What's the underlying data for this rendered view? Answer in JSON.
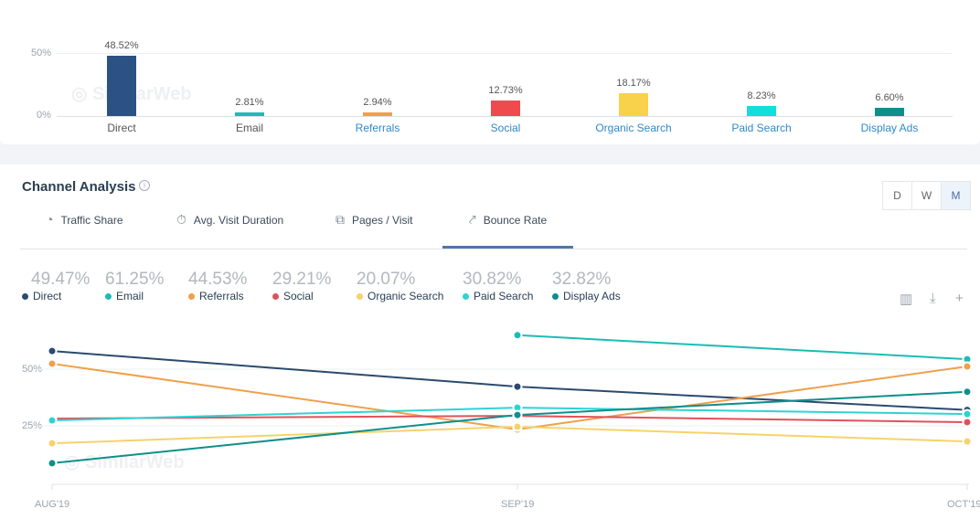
{
  "top_chart": {
    "chart_data": {
      "type": "bar",
      "categories": [
        "Direct",
        "Email",
        "Referrals",
        "Social",
        "Organic Search",
        "Paid Search",
        "Display Ads"
      ],
      "values": [
        48.52,
        2.81,
        2.94,
        12.73,
        18.17,
        8.23,
        6.6
      ],
      "value_labels": [
        "48.52%",
        "2.81%",
        "2.94%",
        "12.73%",
        "18.17%",
        "8.23%",
        "6.60%"
      ],
      "y_ticks": [
        "50%",
        "0%"
      ],
      "ylim": [
        0,
        50
      ]
    },
    "colors": [
      "#2b5283",
      "#1cbcb5",
      "#f0a04b",
      "#ef4a4e",
      "#f8d24a",
      "#12dede",
      "#0e8f8a"
    ],
    "label_link": [
      false,
      false,
      true,
      true,
      true,
      true,
      true
    ],
    "watermark": "SimilarWeb"
  },
  "channel": {
    "title": "Channel Analysis",
    "info_icon": "i",
    "tabs": [
      {
        "label": "Traffic Share",
        "icon": "pie-chart-icon"
      },
      {
        "label": "Avg. Visit Duration",
        "icon": "stopwatch-icon"
      },
      {
        "label": "Pages / Visit",
        "icon": "pages-icon"
      },
      {
        "label": "Bounce Rate",
        "icon": "bounce-icon",
        "active": true
      }
    ],
    "granularity": [
      "D",
      "W",
      "M"
    ],
    "granularity_selected": "M",
    "legend": [
      {
        "value": "49.47%",
        "name": "Direct"
      },
      {
        "value": "61.25%",
        "name": "Email"
      },
      {
        "value": "44.53%",
        "name": "Referrals"
      },
      {
        "value": "29.21%",
        "name": "Social"
      },
      {
        "value": "20.07%",
        "name": "Organic Search"
      },
      {
        "value": "30.82%",
        "name": "Paid Search"
      },
      {
        "value": "32.82%",
        "name": "Display Ads"
      }
    ],
    "chart_data": {
      "type": "line",
      "title": "Bounce Rate",
      "x": [
        "AUG'19",
        "SEP'19",
        "OCT'19"
      ],
      "y_ticks": [
        "50%",
        "25%"
      ],
      "ylim": [
        0,
        70
      ],
      "series": [
        {
          "name": "Direct",
          "color": "#2b4a6f",
          "values": [
            58,
            42.3,
            32
          ]
        },
        {
          "name": "Email",
          "color": "#1cbcb5",
          "values": [
            null,
            65,
            54.4
          ]
        },
        {
          "name": "Referrals",
          "color": "#f0a04b",
          "values": [
            52.4,
            23.4,
            51.2
          ]
        },
        {
          "name": "Social",
          "color": "#e0525a",
          "values": [
            28.2,
            29.4,
            26.6
          ]
        },
        {
          "name": "Organic Search",
          "color": "#f5d36b",
          "values": [
            17.3,
            24.6,
            18.1
          ]
        },
        {
          "name": "Paid Search",
          "color": "#2fd3d3",
          "values": [
            27.4,
            33,
            30.2
          ]
        },
        {
          "name": "Display Ads",
          "color": "#0e8f8a",
          "values": [
            8.5,
            29.8,
            40
          ]
        }
      ]
    },
    "watermark": "SimilarWeb"
  }
}
